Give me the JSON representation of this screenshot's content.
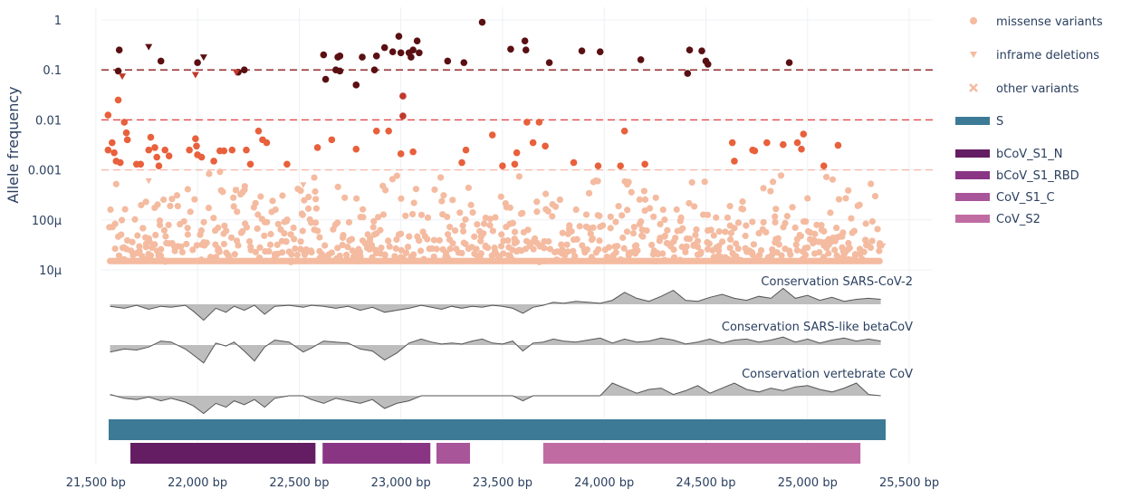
{
  "chart_data": {
    "type": "scatter",
    "title": "",
    "ylabel": "Allele frequency",
    "xlabel": "",
    "x_unit": "bp",
    "xlim": [
      21450,
      25400
    ],
    "x_ticks": [
      21500,
      22000,
      22500,
      23000,
      23500,
      24000,
      24500,
      25000,
      25500
    ],
    "x_tick_labels": [
      "21,500 bp",
      "22,000 bp",
      "22,500 bp",
      "23,000 bp",
      "23,500 bp",
      "24,000 bp",
      "24,500 bp",
      "25,000 bp",
      "25,500 bp"
    ],
    "y_scale": "log",
    "ylim": [
      1e-05,
      1.5
    ],
    "y_ticks": [
      1,
      0.1,
      0.01,
      0.001,
      0.0001,
      1e-05
    ],
    "y_tick_labels": [
      "1",
      "0.1",
      "0.01",
      "0.001",
      "100μ",
      "10μ"
    ],
    "threshold_lines": [
      {
        "y": 0.1,
        "color": "#8b1a1a"
      },
      {
        "y": 0.01,
        "color": "#e0403f"
      },
      {
        "y": 0.001,
        "color": "#f5b8a5"
      }
    ],
    "colors": {
      "high": "#5a0f12",
      "mid": "#e8603c",
      "low": "#f4bba0",
      "gene_S": "#3d7a96",
      "bCoV_S1_N": "#641d62",
      "bCoV_S1_RBD": "#8a3584",
      "CoV_S1_C": "#a8559a",
      "CoV_S2": "#c06ca3",
      "conservation": "#bdbdbd"
    },
    "legend": {
      "placement": "right",
      "items": [
        {
          "label": "missense variants",
          "symbol": "circle",
          "color": "#f4bba0"
        },
        {
          "label": "inframe deletions",
          "symbol": "triangle-down",
          "color": "#f4bba0"
        },
        {
          "label": "other variants",
          "symbol": "x",
          "color": "#f4bba0"
        },
        {
          "label": "S",
          "symbol": "bar",
          "color": "#3d7a96"
        },
        {
          "label": "bCoV_S1_N",
          "symbol": "bar",
          "color": "#641d62"
        },
        {
          "label": "bCoV_S1_RBD",
          "symbol": "bar",
          "color": "#8a3584"
        },
        {
          "label": "CoV_S1_C",
          "symbol": "bar",
          "color": "#a8559a"
        },
        {
          "label": "CoV_S2",
          "symbol": "bar",
          "color": "#c06ca3"
        }
      ]
    },
    "high_variants": {
      "missense": [
        [
          21615,
          0.25
        ],
        [
          21820,
          0.15
        ],
        [
          22000,
          0.14
        ],
        [
          22620,
          0.2
        ],
        [
          22690,
          0.18
        ],
        [
          22700,
          0.19
        ],
        [
          22810,
          0.18
        ],
        [
          22880,
          0.19
        ],
        [
          22920,
          0.28
        ],
        [
          22960,
          0.23
        ],
        [
          22990,
          0.47
        ],
        [
          23000,
          0.22
        ],
        [
          23040,
          0.22
        ],
        [
          23050,
          0.18
        ],
        [
          23060,
          0.25
        ],
        [
          23080,
          0.38
        ],
        [
          23090,
          0.22
        ],
        [
          23230,
          0.15
        ],
        [
          23310,
          0.14
        ],
        [
          23400,
          0.9
        ],
        [
          23540,
          0.26
        ],
        [
          23610,
          0.38
        ],
        [
          23615,
          0.25
        ],
        [
          23730,
          0.14
        ],
        [
          23890,
          0.24
        ],
        [
          23980,
          0.23
        ],
        [
          24180,
          0.16
        ],
        [
          24420,
          0.25
        ],
        [
          24480,
          0.24
        ],
        [
          24500,
          0.15
        ],
        [
          24510,
          0.13
        ],
        [
          24910,
          0.14
        ],
        [
          22680,
          0.1
        ],
        [
          22700,
          0.095
        ],
        [
          22870,
          0.1
        ],
        [
          23010,
          0.03
        ],
        [
          23010,
          0.012
        ],
        [
          22630,
          0.065
        ],
        [
          22780,
          0.05
        ],
        [
          21610,
          0.095
        ],
        [
          22200,
          0.09
        ],
        [
          22230,
          0.1
        ],
        [
          24410,
          0.085
        ]
      ],
      "inframe": [
        [
          21760,
          0.29
        ],
        [
          21990,
          0.08
        ],
        [
          22030,
          0.18
        ],
        [
          22190,
          0.09
        ],
        [
          21630,
          0.075
        ]
      ]
    },
    "mid_variants": {
      "missense": [
        [
          21560,
          0.0125
        ],
        [
          21610,
          0.025
        ],
        [
          21640,
          0.009
        ],
        [
          21650,
          0.0055
        ],
        [
          21655,
          0.004
        ],
        [
          21580,
          0.0035
        ],
        [
          21560,
          0.0025
        ],
        [
          21600,
          0.0015
        ],
        [
          21620,
          0.0014
        ],
        [
          21720,
          0.0013
        ],
        [
          21700,
          0.0013
        ],
        [
          21760,
          0.0025
        ],
        [
          21770,
          0.0045
        ],
        [
          21790,
          0.0028
        ],
        [
          21800,
          0.0018
        ],
        [
          21810,
          0.0012
        ],
        [
          21840,
          0.0025
        ],
        [
          21860,
          0.0019
        ],
        [
          21960,
          0.0025
        ],
        [
          21990,
          0.0042
        ],
        [
          21995,
          0.003
        ],
        [
          22000,
          0.002
        ],
        [
          22020,
          0.0018
        ],
        [
          22080,
          0.0015
        ],
        [
          22110,
          0.0024
        ],
        [
          22130,
          0.0024
        ],
        [
          22170,
          0.0025
        ],
        [
          22240,
          0.0025
        ],
        [
          22260,
          0.0013
        ],
        [
          22300,
          0.006
        ],
        [
          22320,
          0.004
        ],
        [
          22340,
          0.0035
        ],
        [
          22440,
          0.0013
        ],
        [
          22590,
          0.0028
        ],
        [
          22660,
          0.004
        ],
        [
          22780,
          0.0026
        ],
        [
          22880,
          0.006
        ],
        [
          22940,
          0.006
        ],
        [
          23000,
          0.0021
        ],
        [
          23060,
          0.0023
        ],
        [
          23300,
          0.0014
        ],
        [
          23320,
          0.0025
        ],
        [
          23450,
          0.005
        ],
        [
          23500,
          0.0012
        ],
        [
          23560,
          0.0013
        ],
        [
          23570,
          0.0022
        ],
        [
          23620,
          0.009
        ],
        [
          23650,
          0.0035
        ],
        [
          23680,
          0.009
        ],
        [
          23710,
          0.003
        ],
        [
          23850,
          0.0014
        ],
        [
          23970,
          0.0012
        ],
        [
          24080,
          0.0012
        ],
        [
          24100,
          0.006
        ],
        [
          24200,
          0.0013
        ],
        [
          24630,
          0.0035
        ],
        [
          24640,
          0.0015
        ],
        [
          24730,
          0.0025
        ],
        [
          24740,
          0.0024
        ],
        [
          24800,
          0.0035
        ],
        [
          24880,
          0.0032
        ],
        [
          24950,
          0.0035
        ],
        [
          24970,
          0.0026
        ],
        [
          24980,
          0.0052
        ],
        [
          25080,
          0.0012
        ],
        [
          25150,
          0.0031
        ],
        [
          21590,
          0.0022
        ]
      ]
    },
    "low_variant_density": {
      "x_range": [
        21570,
        25360
      ],
      "floor_value": 1.5e-05,
      "note": "dense cloud between 15μ and 800μ"
    },
    "conservation_tracks": [
      {
        "name": "Conservation SARS-CoV-2",
        "x": [
          21570,
          21640,
          21700,
          21760,
          21820,
          21870,
          21940,
          21980,
          22030,
          22090,
          22140,
          22180,
          22230,
          22280,
          22330,
          22380,
          22450,
          22520,
          22560,
          22620,
          22680,
          22740,
          22800,
          22860,
          22920,
          22980,
          23040,
          23100,
          23150,
          23200,
          23250,
          23300,
          23350,
          23400,
          23450,
          23500,
          23550,
          23600,
          23650,
          23700,
          23750,
          23800,
          23860,
          23920,
          23980,
          24040,
          24100,
          24160,
          24220,
          24280,
          24340,
          24400,
          24460,
          24520,
          24580,
          24640,
          24700,
          24760,
          24820,
          24880,
          24940,
          25000,
          25060,
          25120,
          25180,
          25240,
          25300,
          25360
        ],
        "values": [
          -0.1,
          -0.2,
          -0.05,
          -0.25,
          -0.1,
          -0.15,
          -0.05,
          -0.35,
          -0.8,
          -0.2,
          -0.4,
          -0.1,
          -0.3,
          -0.05,
          -0.5,
          -0.1,
          -0.05,
          -0.15,
          -0.05,
          -0.1,
          -0.2,
          -0.1,
          -0.3,
          -0.15,
          -0.4,
          -0.3,
          -0.2,
          -0.05,
          -0.15,
          -0.25,
          -0.1,
          -0.2,
          -0.1,
          -0.15,
          -0.05,
          -0.1,
          -0.2,
          -0.45,
          -0.15,
          -0.05,
          0.1,
          0.05,
          0.15,
          0.1,
          0.05,
          0.2,
          0.6,
          0.3,
          0.15,
          0.4,
          0.7,
          0.2,
          0.15,
          0.35,
          0.5,
          0.3,
          0.2,
          0.4,
          0.3,
          0.8,
          0.3,
          0.45,
          0.2,
          0.35,
          0.15,
          0.25,
          0.3,
          0.25
        ]
      },
      {
        "name": "Conservation SARS-like betaCoV",
        "x": [
          21570,
          21640,
          21700,
          21760,
          21820,
          21870,
          21940,
          21980,
          22030,
          22090,
          22140,
          22180,
          22230,
          22280,
          22330,
          22380,
          22450,
          22520,
          22560,
          22620,
          22680,
          22740,
          22800,
          22860,
          22920,
          22980,
          23040,
          23100,
          23150,
          23200,
          23250,
          23300,
          23350,
          23400,
          23450,
          23500,
          23550,
          23600,
          23650,
          23700,
          23750,
          23800,
          23860,
          23920,
          23980,
          24040,
          24100,
          24160,
          24220,
          24280,
          24340,
          24400,
          24460,
          24520,
          24580,
          24640,
          24700,
          24760,
          24820,
          24880,
          24940,
          25000,
          25060,
          25120,
          25180,
          25240,
          25300,
          25360
        ],
        "values": [
          -0.35,
          -0.2,
          -0.25,
          -0.1,
          0.2,
          0.15,
          -0.2,
          -0.5,
          -0.9,
          0.1,
          -0.05,
          0.15,
          -0.3,
          -0.8,
          -0.1,
          0.25,
          0.15,
          -0.35,
          -0.15,
          0.2,
          0.15,
          0.1,
          -0.2,
          -0.3,
          -0.75,
          -0.4,
          0.1,
          0.3,
          0.15,
          0.05,
          0.1,
          0.05,
          0.2,
          0.3,
          0.1,
          0.05,
          0.2,
          -0.3,
          0.1,
          0.15,
          0.3,
          0.2,
          0.15,
          0.25,
          0.35,
          0.1,
          0.3,
          0.15,
          0.2,
          0.35,
          0.25,
          0.05,
          0.15,
          0.3,
          0.1,
          0.25,
          0.3,
          0.15,
          0.25,
          0.4,
          0.15,
          0.3,
          0.1,
          0.25,
          0.35,
          0.2,
          0.3,
          0.2
        ]
      },
      {
        "name": "Conservation vertebrate CoV",
        "x": [
          21570,
          21640,
          21700,
          21760,
          21820,
          21870,
          21940,
          21980,
          22030,
          22090,
          22140,
          22180,
          22230,
          22280,
          22330,
          22380,
          22450,
          22520,
          22560,
          22620,
          22680,
          22740,
          22800,
          22860,
          22920,
          22980,
          23040,
          23100,
          23150,
          23200,
          23250,
          23300,
          23350,
          23400,
          23450,
          23500,
          23550,
          23600,
          23650,
          23700,
          23750,
          23800,
          23860,
          23920,
          23980,
          24040,
          24100,
          24160,
          24220,
          24280,
          24340,
          24400,
          24460,
          24520,
          24580,
          24640,
          24700,
          24760,
          24820,
          24880,
          24940,
          25000,
          25060,
          25120,
          25180,
          25240,
          25300,
          25360
        ],
        "values": [
          0.05,
          -0.1,
          -0.15,
          -0.05,
          -0.2,
          -0.1,
          -0.25,
          -0.4,
          -0.7,
          -0.3,
          -0.45,
          -0.2,
          -0.35,
          -0.15,
          -0.45,
          -0.1,
          0.0,
          0.0,
          -0.15,
          -0.3,
          -0.1,
          -0.2,
          -0.3,
          -0.15,
          -0.5,
          -0.3,
          -0.2,
          0.0,
          0.0,
          0.0,
          0.0,
          0.0,
          0.0,
          0.0,
          0.0,
          0.0,
          0.0,
          -0.2,
          0.0,
          0.0,
          0.0,
          0.0,
          0.0,
          0.0,
          0.0,
          0.5,
          0.3,
          0.1,
          0.25,
          0.3,
          0.05,
          0.2,
          0.4,
          0.1,
          0.3,
          0.5,
          0.25,
          0.15,
          0.3,
          0.2,
          0.35,
          0.4,
          0.25,
          0.15,
          0.3,
          0.5,
          0.05,
          0.0
        ]
      }
    ],
    "gene_S": {
      "name": "S",
      "start": 21563,
      "end": 25384
    },
    "domains": [
      {
        "name": "bCoV_S1_N",
        "start": 21670,
        "end": 22580
      },
      {
        "name": "bCoV_S1_RBD",
        "start": 22615,
        "end": 23145
      },
      {
        "name": "CoV_S1_C",
        "start": 23175,
        "end": 23340
      },
      {
        "name": "CoV_S2",
        "start": 23700,
        "end": 25260
      }
    ]
  }
}
